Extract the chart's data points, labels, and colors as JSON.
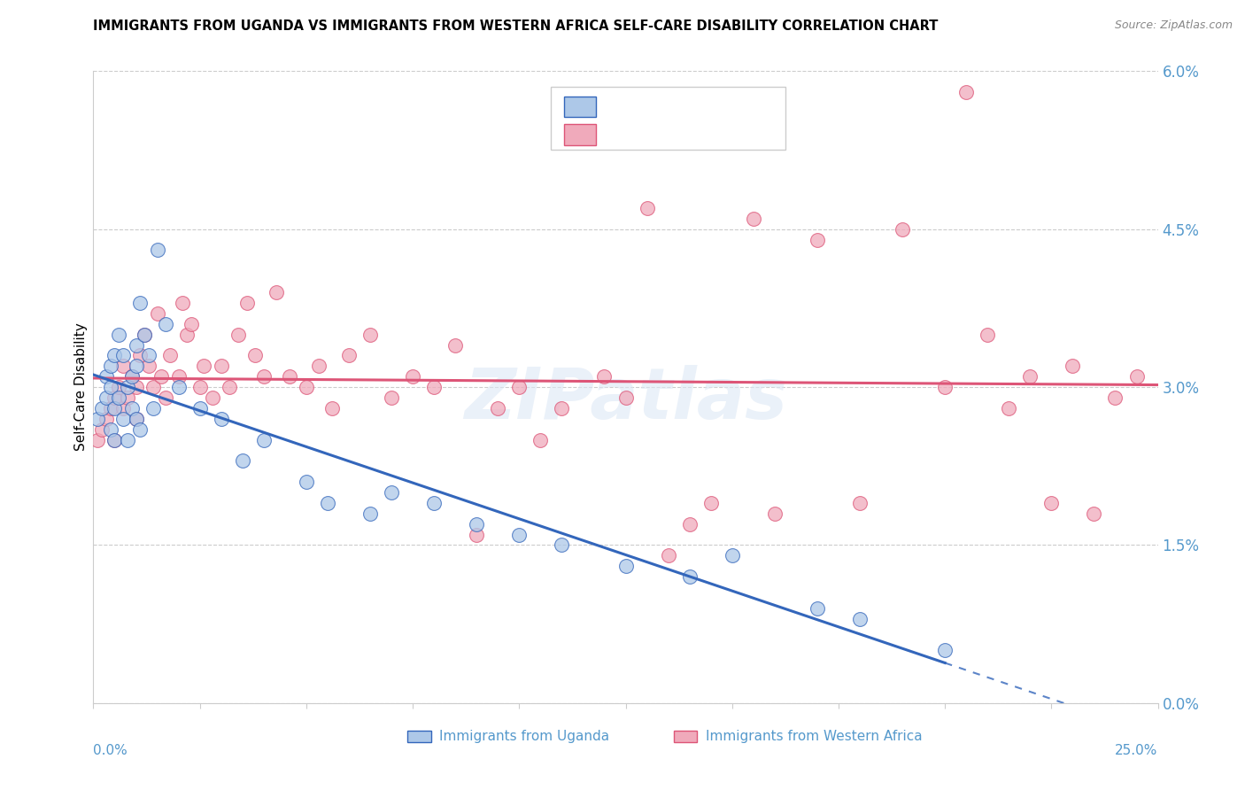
{
  "title": "IMMIGRANTS FROM UGANDA VS IMMIGRANTS FROM WESTERN AFRICA SELF-CARE DISABILITY CORRELATION CHART",
  "source": "Source: ZipAtlas.com",
  "ylabel": "Self-Care Disability",
  "ylabel_right_vals": [
    0.0,
    1.5,
    3.0,
    4.5,
    6.0
  ],
  "xlim": [
    0.0,
    25.0
  ],
  "ylim": [
    0.0,
    6.0
  ],
  "color_uganda": "#adc8e8",
  "color_western": "#f0aabb",
  "color_uganda_line": "#3366bb",
  "color_western_line": "#dd5577",
  "color_axis_text": "#5599cc",
  "color_grid": "#cccccc",
  "watermark": "ZIPatlas",
  "uganda_x": [
    0.1,
    0.2,
    0.3,
    0.3,
    0.4,
    0.4,
    0.4,
    0.5,
    0.5,
    0.5,
    0.6,
    0.6,
    0.7,
    0.7,
    0.8,
    0.8,
    0.9,
    0.9,
    1.0,
    1.0,
    1.0,
    1.1,
    1.1,
    1.2,
    1.3,
    1.4,
    1.5,
    1.7,
    2.0,
    2.5,
    3.0,
    3.5,
    4.0,
    5.0,
    5.5,
    6.5,
    7.0,
    8.0,
    9.0,
    10.0,
    11.0,
    12.5,
    14.0,
    15.0,
    17.0,
    18.0,
    20.0
  ],
  "uganda_y": [
    2.7,
    2.8,
    3.1,
    2.9,
    3.2,
    2.6,
    3.0,
    3.3,
    2.5,
    2.8,
    3.5,
    2.9,
    3.3,
    2.7,
    3.0,
    2.5,
    3.1,
    2.8,
    3.4,
    2.7,
    3.2,
    3.8,
    2.6,
    3.5,
    3.3,
    2.8,
    4.3,
    3.6,
    3.0,
    2.8,
    2.7,
    2.3,
    2.5,
    2.1,
    1.9,
    1.8,
    2.0,
    1.9,
    1.7,
    1.6,
    1.5,
    1.3,
    1.2,
    1.4,
    0.9,
    0.8,
    0.5
  ],
  "western_x": [
    0.1,
    0.2,
    0.3,
    0.4,
    0.5,
    0.5,
    0.6,
    0.7,
    0.7,
    0.8,
    0.9,
    1.0,
    1.0,
    1.1,
    1.2,
    1.3,
    1.4,
    1.5,
    1.6,
    1.7,
    1.8,
    2.0,
    2.1,
    2.2,
    2.3,
    2.5,
    2.6,
    2.8,
    3.0,
    3.2,
    3.4,
    3.6,
    3.8,
    4.0,
    4.3,
    4.6,
    5.0,
    5.3,
    5.6,
    6.0,
    6.5,
    7.0,
    7.5,
    8.0,
    8.5,
    9.0,
    9.5,
    10.0,
    10.5,
    11.0,
    12.0,
    12.5,
    13.0,
    14.0,
    14.5,
    15.5,
    16.0,
    17.0,
    18.0,
    19.0,
    20.5,
    21.0,
    22.0,
    23.0,
    24.0,
    24.5,
    20.0,
    21.5,
    13.5,
    22.5,
    23.5
  ],
  "western_y": [
    2.5,
    2.6,
    2.7,
    2.8,
    2.9,
    2.5,
    3.0,
    2.8,
    3.2,
    2.9,
    3.1,
    3.0,
    2.7,
    3.3,
    3.5,
    3.2,
    3.0,
    3.7,
    3.1,
    2.9,
    3.3,
    3.1,
    3.8,
    3.5,
    3.6,
    3.0,
    3.2,
    2.9,
    3.2,
    3.0,
    3.5,
    3.8,
    3.3,
    3.1,
    3.9,
    3.1,
    3.0,
    3.2,
    2.8,
    3.3,
    3.5,
    2.9,
    3.1,
    3.0,
    3.4,
    1.6,
    2.8,
    3.0,
    2.5,
    2.8,
    3.1,
    2.9,
    4.7,
    1.7,
    1.9,
    4.6,
    1.8,
    4.4,
    1.9,
    4.5,
    5.8,
    3.5,
    3.1,
    3.2,
    2.9,
    3.1,
    3.0,
    2.8,
    1.4,
    1.9,
    1.8
  ],
  "xticks": [
    0.0,
    2.5,
    5.0,
    7.5,
    10.0,
    12.5,
    15.0,
    17.5,
    20.0,
    22.5,
    25.0
  ]
}
